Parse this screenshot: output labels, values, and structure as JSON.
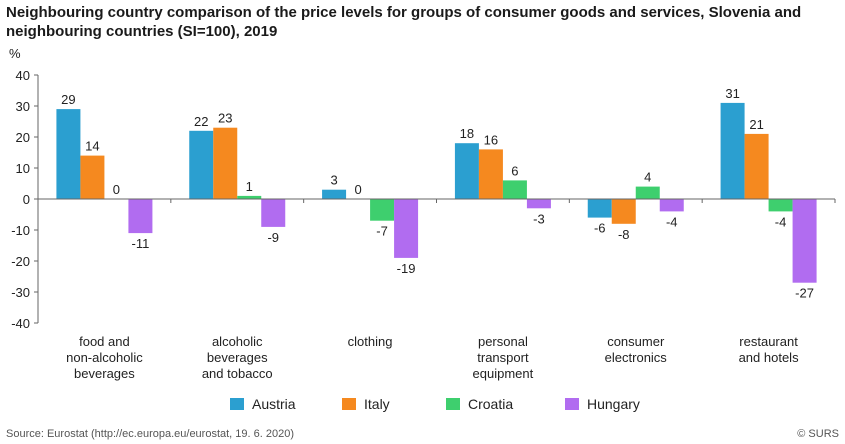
{
  "header": {
    "title": "Neighbouring country comparison of the price levels for groups of consumer goods and services, Slovenia and neighbouring countries (SI=100), 2019"
  },
  "footer": {
    "source": "Source: Eurostat (http://ec.europa.eu/eurostat, 19. 6. 2020)",
    "copyright": "© SURS"
  },
  "chart_data": {
    "type": "bar",
    "title": "Neighbouring country comparison of the price levels for groups of consumer goods and services, Slovenia and neighbouring countries (SI=100), 2019",
    "ylabel": "%",
    "xlabel": "",
    "ylim": [
      -40,
      40
    ],
    "yticks": [
      40,
      30,
      20,
      10,
      0,
      -10,
      -20,
      -30,
      -40
    ],
    "grid": false,
    "legend_position": "bottom",
    "categories": [
      [
        "food and",
        "non-alcoholic",
        "beverages"
      ],
      [
        "alcoholic",
        "beverages",
        "and tobacco"
      ],
      [
        "clothing"
      ],
      [
        "personal",
        "transport",
        "equipment"
      ],
      [
        "consumer",
        "electronics"
      ],
      [
        "restaurant",
        "and hotels"
      ]
    ],
    "series": [
      {
        "name": "Austria",
        "color": "#2b9fd0",
        "values": [
          29,
          22,
          3,
          18,
          -6,
          31
        ],
        "labels": [
          "29",
          "22",
          "3",
          "18",
          "-6",
          "31"
        ]
      },
      {
        "name": "Italy",
        "color": "#f5891f",
        "values": [
          14,
          23,
          0,
          16,
          -8,
          21
        ],
        "labels": [
          "14",
          "23",
          "0",
          "16",
          "-8",
          "21"
        ]
      },
      {
        "name": "Croatia",
        "color": "#3ecf6e",
        "values": [
          0,
          1,
          -7,
          6,
          4,
          -4
        ],
        "labels": [
          "0",
          "1",
          "-7",
          "6",
          "4",
          "-4"
        ]
      },
      {
        "name": "Hungary",
        "color": "#b16cf0",
        "values": [
          -11,
          -9,
          -19,
          -3,
          -4,
          -27
        ],
        "labels": [
          "-11",
          "-9",
          "-19",
          "-3",
          "-4",
          "-27"
        ]
      }
    ]
  }
}
